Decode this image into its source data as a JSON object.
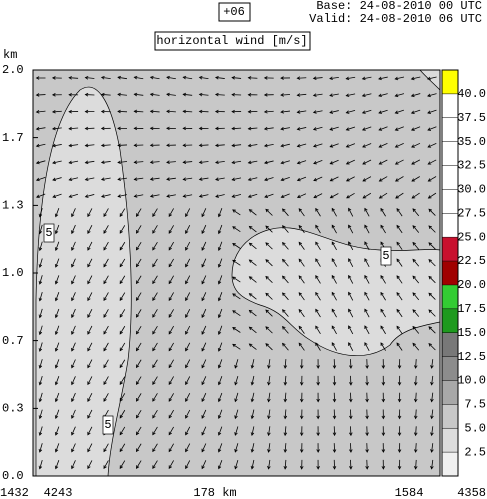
{
  "chart_data": {
    "type": "vector",
    "forecast": "+06",
    "base": "Base: 24-08-2010  00 UTC",
    "valid": "Valid: 24-08-2010  06 UTC",
    "title": "horizontal wind [m/s]",
    "ylabel": "km",
    "ylim": [
      0,
      2
    ],
    "yticks": [
      {
        "value": 0,
        "label": "0.0"
      },
      {
        "value": 0.333,
        "label": "0.3"
      },
      {
        "value": 0.667,
        "label": "0.7"
      },
      {
        "value": 1,
        "label": "1.0"
      },
      {
        "value": 1.333,
        "label": "1.3"
      },
      {
        "value": 1.667,
        "label": "1.7"
      },
      {
        "value": 2,
        "label": "2.0"
      }
    ],
    "x_labels": [
      "1432",
      "4243",
      "178 km",
      "1584",
      "4358"
    ],
    "colorbar": {
      "ticks": [
        2.5,
        {
          "value": 5,
          "label": "5.0"
        },
        7.5,
        {
          "value": 10,
          "label": "10.0"
        },
        12.5,
        {
          "value": 15,
          "label": "15.0"
        },
        17.5,
        {
          "value": 20,
          "label": "20.0"
        },
        22.5,
        {
          "value": 25,
          "label": "25.0"
        },
        27.5,
        {
          "value": 30,
          "label": "30.0"
        },
        32.5,
        {
          "value": 35,
          "label": "35.0"
        },
        37.5,
        {
          "value": 40,
          "label": "40.0"
        }
      ],
      "colors": [
        "#f0f0f0",
        "#dcdcdc",
        "#c8c8c8",
        "#a8a8a8",
        "#8c8c8c",
        "#787878",
        "#1e9a1e",
        "#33cc33",
        "#a00000",
        "#c8102e",
        "#ffffff",
        "#ffffff",
        "#ffffff",
        "#ffffff",
        "#ffffff",
        "#ffffff",
        "#ffff00"
      ]
    },
    "contour_labels": [
      5,
      5,
      5
    ]
  }
}
